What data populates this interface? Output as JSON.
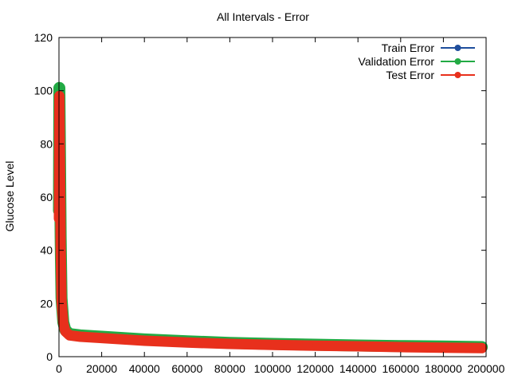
{
  "chart_data": {
    "type": "line",
    "title": "All Intervals - Error",
    "xlabel": "",
    "ylabel": "Glucose Level",
    "xlim": [
      0,
      200000
    ],
    "ylim": [
      0,
      120
    ],
    "xticks": [
      0,
      20000,
      40000,
      60000,
      80000,
      100000,
      120000,
      140000,
      160000,
      180000,
      200000
    ],
    "yticks": [
      0,
      20,
      40,
      60,
      80,
      100,
      120
    ],
    "grid": false,
    "legend_position": "top-right",
    "series": [
      {
        "name": "Train Error",
        "color": "#1f4e9c",
        "x": [
          0,
          200,
          500,
          800,
          1200,
          2000,
          3000,
          5000,
          10000,
          20000,
          40000,
          60000,
          80000,
          100000,
          120000,
          140000,
          160000,
          180000,
          198000
        ],
        "y": [
          50,
          95,
          70,
          40,
          20,
          12,
          9,
          7.5,
          7,
          6.5,
          5.5,
          4.8,
          4.3,
          4,
          3.7,
          3.5,
          3.2,
          3,
          2.8
        ]
      },
      {
        "name": "Validation Error",
        "color": "#22aa44",
        "x": [
          0,
          200,
          500,
          800,
          1200,
          2000,
          3000,
          5000,
          10000,
          20000,
          40000,
          60000,
          80000,
          100000,
          120000,
          140000,
          160000,
          180000,
          198000
        ],
        "y": [
          55,
          101,
          75,
          45,
          22,
          13,
          10,
          8.5,
          8,
          7.5,
          6.5,
          5.8,
          5.2,
          4.8,
          4.5,
          4.2,
          4,
          3.8,
          3.6
        ]
      },
      {
        "name": "Test Error",
        "color": "#e8301c",
        "x": [
          0,
          200,
          500,
          800,
          1200,
          2000,
          3000,
          5000,
          10000,
          20000,
          40000,
          60000,
          80000,
          100000,
          120000,
          140000,
          160000,
          180000,
          198000
        ],
        "y": [
          52,
          98,
          72,
          42,
          21,
          12.5,
          9.5,
          8,
          7.5,
          7,
          6,
          5.3,
          4.8,
          4.4,
          4.1,
          3.9,
          3.6,
          3.4,
          3.2
        ]
      }
    ]
  }
}
